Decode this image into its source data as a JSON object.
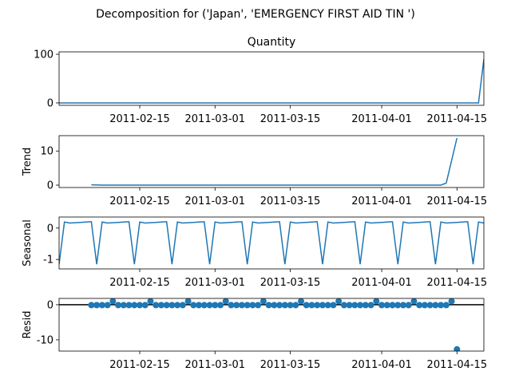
{
  "chart_data": {
    "type": "line",
    "suptitle": "Decomposition for ('Japan', 'EMERGENCY FIRST AID TIN ')",
    "x_ticks": [
      "2011-02-15",
      "2011-03-01",
      "2011-03-15",
      "2011-04-01",
      "2011-04-15"
    ],
    "line_color": "#1f77b4",
    "panels": [
      {
        "id": "observed",
        "title": "Quantity",
        "ylabel": "",
        "kind": "line",
        "ylim": [
          -5,
          105
        ],
        "yticks": [
          0,
          100
        ],
        "xlim": [
          "2011-01-31",
          "2011-04-20"
        ],
        "points": [
          {
            "x": "2011-01-31",
            "y": 0
          },
          {
            "x": "2011-04-19",
            "y": 0
          },
          {
            "x": "2011-04-20",
            "y": 90
          }
        ]
      },
      {
        "id": "trend",
        "title": "",
        "ylabel": "Trend",
        "kind": "line",
        "ylim": [
          -0.7,
          14.5
        ],
        "yticks": [
          0,
          10
        ],
        "xlim": [
          "2011-01-31",
          "2011-04-20"
        ],
        "points": [
          {
            "x": "2011-02-06",
            "y": 0.1
          },
          {
            "x": "2011-02-08",
            "y": 0
          },
          {
            "x": "2011-04-12",
            "y": 0
          },
          {
            "x": "2011-04-13",
            "y": 0.6
          },
          {
            "x": "2011-04-15",
            "y": 13.8
          }
        ]
      },
      {
        "id": "seasonal",
        "title": "",
        "ylabel": "Seasonal",
        "kind": "line",
        "ylim": [
          -1.3,
          0.35
        ],
        "yticks": [
          0,
          -1
        ],
        "xlim": [
          "2011-01-31",
          "2011-04-20"
        ],
        "weekly_pattern": [
          -1.15,
          0.19,
          0.16,
          0.17,
          0.18,
          0.19,
          0.2
        ],
        "first_low": "2011-01-31",
        "last_date": "2011-04-20"
      },
      {
        "id": "resid",
        "title": "",
        "ylabel": "Resid",
        "kind": "scatter",
        "ylim": [
          -13.2,
          1.8
        ],
        "yticks": [
          0,
          -10
        ],
        "xlim": [
          "2011-01-31",
          "2011-04-20"
        ],
        "hline": 0,
        "scatter_start": "2011-02-06",
        "scatter_end": "2011-04-14",
        "base_value": -0.1,
        "high_value": 1.0,
        "high_weekday_offset_from": "2011-02-10",
        "outlier": {
          "x": "2011-04-15",
          "y": -12.7
        }
      }
    ]
  }
}
